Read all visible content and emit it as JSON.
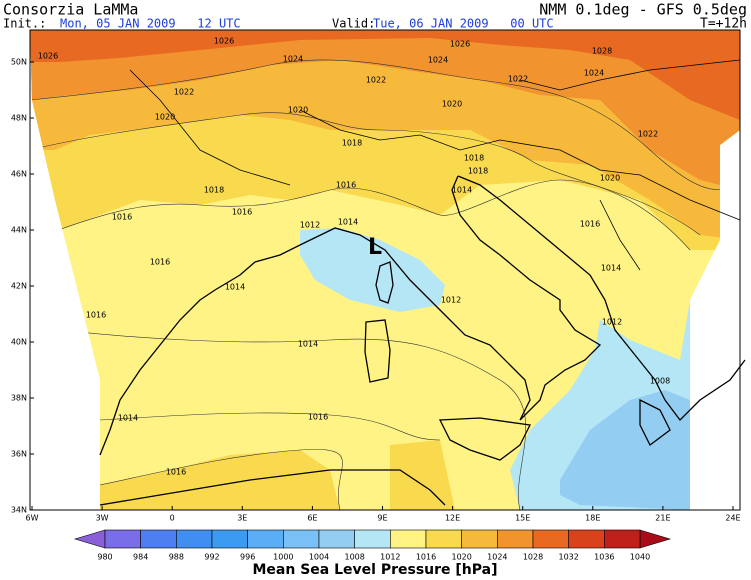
{
  "header": {
    "source": "Consorzia LaMMa",
    "model": "NMM 0.1deg - GFS 0.5deg",
    "init_label": "Init.:",
    "init": "Mon, 05 JAN 2009   12 UTC",
    "valid_label": "Valid:",
    "valid": "Tue, 06 JAN 2009   00 UTC",
    "step": "T=+12h"
  },
  "map": {
    "lat_ticks": [
      "50N",
      "48N",
      "46N",
      "44N",
      "42N",
      "40N",
      "38N",
      "36N",
      "34N"
    ],
    "lon_ticks": [
      "6W",
      "3W",
      "0",
      "3E",
      "6E",
      "9E",
      "12E",
      "15E",
      "18E",
      "21E",
      "24E"
    ],
    "low_marker": "L",
    "isobar_labels": [
      1026,
      1026,
      1024,
      1026,
      1024,
      1028,
      1024,
      1022,
      1022,
      1022,
      1020,
      1020,
      1020,
      1022,
      1018,
      1018,
      1018,
      1016,
      1014,
      1020,
      1018,
      1016,
      1016,
      1012,
      1014,
      1016,
      1016,
      1014,
      1014,
      1012,
      1016,
      1012,
      1014,
      1008,
      1014,
      1016,
      1016
    ]
  },
  "colorbar": {
    "label": "Mean Sea Level Pressure [hPa]",
    "levels": [
      980,
      984,
      988,
      992,
      996,
      1000,
      1004,
      1008,
      1012,
      1016,
      1020,
      1024,
      1028,
      1032,
      1036,
      1040
    ],
    "colors": [
      "#8a5fd8",
      "#7a6ee8",
      "#4d7ff0",
      "#3f8ef0",
      "#3b9bf0",
      "#5aaef5",
      "#78c0f5",
      "#93cdf2",
      "#b4e6f5",
      "#fff385",
      "#f9da4e",
      "#f7b93c",
      "#f19430",
      "#e86a22",
      "#d9431c",
      "#c0201a",
      "#a80c18"
    ]
  }
}
